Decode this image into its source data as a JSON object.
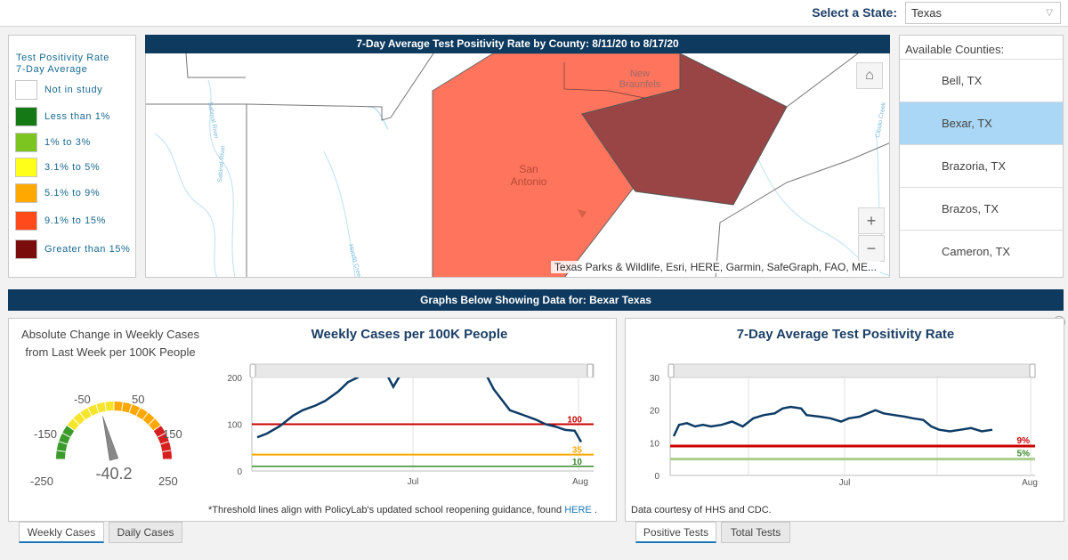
{
  "header": {
    "state_label": "Select a State:",
    "state_value": "Texas"
  },
  "legend": {
    "title_line1": "Test Positivity Rate",
    "title_line2": "7-Day Average",
    "items": [
      {
        "label": "Not in study",
        "color": "#ffffff"
      },
      {
        "label": "Less than 1%",
        "color": "#157a15"
      },
      {
        "label": "1% to 3%",
        "color": "#7cc520"
      },
      {
        "label": "3.1% to 5%",
        "color": "#ffff1a"
      },
      {
        "label": "5.1% to 9%",
        "color": "#ffa800"
      },
      {
        "label": "9.1% to 15%",
        "color": "#ff4a1c"
      },
      {
        "label": "Greater than 15%",
        "color": "#7a0c0c"
      }
    ]
  },
  "map": {
    "title": "7-Day Average Test Positivity Rate by County: 8/11/20 to 8/17/20",
    "attribution": "Texas Parks & Wildlife, Esri, HERE, Garmin, SafeGraph, FAO, ME...",
    "labels": {
      "new_braunfels_1": "New",
      "new_braunfels_2": "Braunfels",
      "san_antonio_1": "San",
      "san_antonio_2": "Antonio",
      "river1": "Sabinal River",
      "river2": "Sabinal River",
      "creek1": "Hondo Creek",
      "creek2": "Cibolo Creek"
    },
    "zoom_in": "+",
    "zoom_out": "−",
    "colors": {
      "bexar": "#fe745c",
      "guadalupe": "#9a4545"
    }
  },
  "counties": {
    "title": "Available Counties:",
    "items": [
      "Bell, TX",
      "Bexar, TX",
      "Brazoria, TX",
      "Brazos, TX",
      "Cameron, TX"
    ],
    "selected": "Bexar, TX"
  },
  "graphs_header": "Graphs Below Showing Data for: Bexar Texas",
  "gauge": {
    "title_line1": "Absolute Change in Weekly Cases",
    "title_line2": "from Last Week per 100K People",
    "value": -40.2,
    "value_label": "-40.2",
    "min": -250,
    "max": 250,
    "tick_labels": [
      "-250",
      "-150",
      "-50",
      "50",
      "150",
      "250"
    ]
  },
  "weekly_chart": {
    "chart_data": {
      "type": "line",
      "title": "Weekly Cases per 100K People",
      "y_ticks": [
        "0",
        "100",
        "200"
      ],
      "x_ticks": [
        "Jul",
        "Aug"
      ],
      "ylim": [
        0,
        200
      ],
      "thresholds": [
        {
          "value": 100,
          "label": "100",
          "color": "#cc0000"
        },
        {
          "value": 35,
          "label": "35",
          "color": "#ffa800"
        },
        {
          "value": 10,
          "label": "10",
          "color": "#3a8a2a"
        }
      ],
      "series_points": [
        [
          0,
          72
        ],
        [
          3,
          80
        ],
        [
          7,
          96
        ],
        [
          11,
          118
        ],
        [
          14,
          130
        ],
        [
          18,
          140
        ],
        [
          21,
          150
        ],
        [
          25,
          170
        ],
        [
          28,
          190
        ],
        [
          31,
          200
        ],
        [
          34,
          230
        ],
        [
          37,
          215
        ],
        [
          39,
          220
        ],
        [
          42,
          180
        ],
        [
          45,
          215
        ],
        [
          48,
          230
        ],
        [
          53,
          240
        ],
        [
          60,
          238
        ],
        [
          65,
          230
        ],
        [
          70,
          215
        ],
        [
          73,
          175
        ],
        [
          78,
          130
        ],
        [
          82,
          120
        ],
        [
          86,
          110
        ],
        [
          89,
          100
        ],
        [
          92,
          95
        ],
        [
          95,
          88
        ],
        [
          98,
          86
        ],
        [
          100,
          62
        ]
      ]
    }
  },
  "positivity_chart": {
    "chart_data": {
      "type": "line",
      "title": "7-Day Average Test Positivity Rate",
      "y_ticks": [
        "0",
        "10",
        "20",
        "30"
      ],
      "x_ticks": [
        "Jul",
        "Aug"
      ],
      "ylim": [
        0,
        30
      ],
      "thresholds": [
        {
          "value": 9,
          "label": "9%",
          "color": "#cc0000"
        },
        {
          "value": 5,
          "label": "5%",
          "color": "#3a8a2a"
        }
      ],
      "series_points": [
        [
          0,
          12
        ],
        [
          2,
          15.5
        ],
        [
          5,
          16
        ],
        [
          8,
          15
        ],
        [
          11,
          15.5
        ],
        [
          14,
          15
        ],
        [
          18,
          15.5
        ],
        [
          22,
          16.5
        ],
        [
          26,
          15
        ],
        [
          30,
          17.5
        ],
        [
          34,
          18.5
        ],
        [
          38,
          19
        ],
        [
          41,
          20.5
        ],
        [
          44,
          21
        ],
        [
          48,
          20.5
        ],
        [
          50,
          18.5
        ],
        [
          55,
          18
        ],
        [
          59,
          17.5
        ],
        [
          63,
          16.5
        ],
        [
          66,
          17.5
        ],
        [
          70,
          18
        ],
        [
          73,
          19
        ],
        [
          76,
          20
        ],
        [
          79,
          19
        ],
        [
          83,
          18.5
        ],
        [
          87,
          18
        ],
        [
          90,
          17.5
        ],
        [
          94,
          17
        ],
        [
          97,
          15
        ],
        [
          100,
          14
        ],
        [
          104,
          13.5
        ],
        [
          108,
          14
        ],
        [
          112,
          14.5
        ],
        [
          116,
          13.5
        ],
        [
          120,
          14
        ]
      ]
    }
  },
  "footnotes": {
    "left": "*Threshold lines align with PolicyLab's updated school reopening guidance, found ",
    "left_link": "HERE",
    "left_end": " .",
    "right": "Data courtesy of HHS and CDC."
  },
  "tabs": {
    "left": [
      "Weekly Cases",
      "Daily Cases"
    ],
    "right": [
      "Positive Tests",
      "Total Tests"
    ]
  }
}
